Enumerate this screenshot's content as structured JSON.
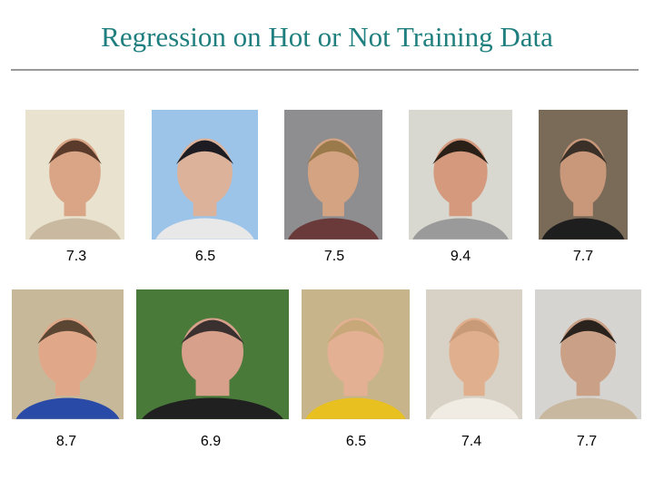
{
  "title": "Regression on Hot or Not Training Data",
  "rows": [
    [
      {
        "score": 7.3
      },
      {
        "score": 6.5
      },
      {
        "score": 7.5
      },
      {
        "score": 9.4
      },
      {
        "score": 7.7
      }
    ],
    [
      {
        "score": 8.7
      },
      {
        "score": 6.9
      },
      {
        "score": 6.5
      },
      {
        "score": 7.4
      },
      {
        "score": 7.7
      }
    ]
  ]
}
